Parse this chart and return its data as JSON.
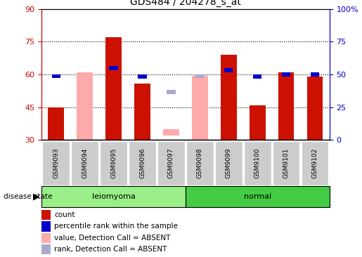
{
  "title": "GDS484 / 204278_s_at",
  "samples": [
    "GSM9093",
    "GSM9094",
    "GSM9095",
    "GSM9096",
    "GSM9097",
    "GSM9098",
    "GSM9099",
    "GSM9100",
    "GSM9101",
    "GSM9102"
  ],
  "red_bars": [
    45,
    null,
    77,
    56,
    null,
    null,
    69,
    46,
    61,
    59
  ],
  "pink_bars_bottom": [
    null,
    30,
    null,
    null,
    32,
    30,
    null,
    null,
    null,
    null
  ],
  "pink_bars_top": [
    null,
    61,
    null,
    null,
    35,
    59.5,
    null,
    null,
    null,
    null
  ],
  "blue_squares": [
    59.3,
    null,
    63,
    59,
    null,
    null,
    62,
    59,
    60,
    60
  ],
  "blue_absent_val": [
    null,
    null,
    null,
    null,
    52,
    59.3,
    null,
    null,
    null,
    null
  ],
  "ylim": [
    30,
    90
  ],
  "yticks_left": [
    30,
    45,
    60,
    75,
    90
  ],
  "yticks_right_vals": [
    0,
    25,
    50,
    75,
    100
  ],
  "yticks_right_pos": [
    30,
    45,
    60,
    75,
    90
  ],
  "bar_width": 0.55,
  "red_color": "#cc1100",
  "pink_color": "#ffaaaa",
  "blue_color": "#0000cc",
  "blue_absent_color": "#aaaacc",
  "group_leiomyoma_color": "#99ee88",
  "group_normal_color": "#44cc44",
  "tick_label_bg": "#cccccc",
  "legend_labels": [
    "count",
    "percentile rank within the sample",
    "value, Detection Call = ABSENT",
    "rank, Detection Call = ABSENT"
  ],
  "legend_colors": [
    "#cc1100",
    "#0000cc",
    "#ffaaaa",
    "#aaaacc"
  ],
  "hlines": [
    45,
    60,
    75
  ],
  "left_color": "#cc0000",
  "right_color": "#0000cc"
}
